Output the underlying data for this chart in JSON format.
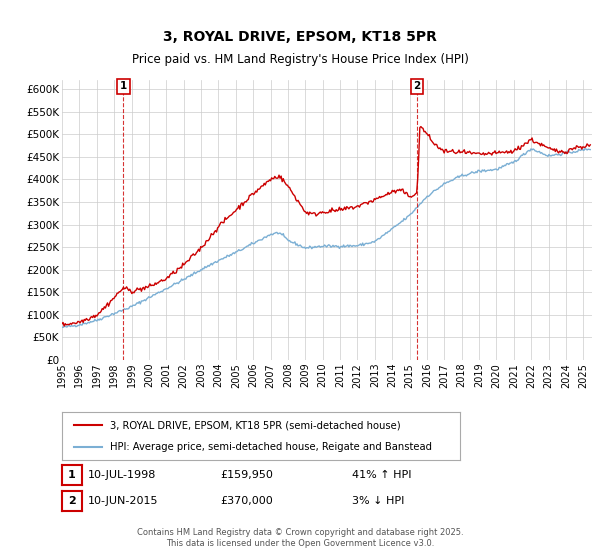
{
  "title": "3, ROYAL DRIVE, EPSOM, KT18 5PR",
  "subtitle": "Price paid vs. HM Land Registry's House Price Index (HPI)",
  "ylim": [
    0,
    620000
  ],
  "xlim_start": 1995.0,
  "xlim_end": 2025.5,
  "yticks": [
    0,
    50000,
    100000,
    150000,
    200000,
    250000,
    300000,
    350000,
    400000,
    450000,
    500000,
    550000,
    600000
  ],
  "ytick_labels": [
    "£0",
    "£50K",
    "£100K",
    "£150K",
    "£200K",
    "£250K",
    "£300K",
    "£350K",
    "£400K",
    "£450K",
    "£500K",
    "£550K",
    "£600K"
  ],
  "xticks": [
    1995,
    1996,
    1997,
    1998,
    1999,
    2000,
    2001,
    2002,
    2003,
    2004,
    2005,
    2006,
    2007,
    2008,
    2009,
    2010,
    2011,
    2012,
    2013,
    2014,
    2015,
    2016,
    2017,
    2018,
    2019,
    2020,
    2021,
    2022,
    2023,
    2024,
    2025
  ],
  "sale1_date": 1998.53,
  "sale1_price": 159950,
  "sale1_label": "1",
  "sale2_date": 2015.44,
  "sale2_price": 370000,
  "sale2_label": "2",
  "legend_line1": "3, ROYAL DRIVE, EPSOM, KT18 5PR (semi-detached house)",
  "legend_line2": "HPI: Average price, semi-detached house, Reigate and Banstead",
  "note1_label": "1",
  "note1_date": "10-JUL-1998",
  "note1_price": "£159,950",
  "note1_pct": "41% ↑ HPI",
  "note2_label": "2",
  "note2_date": "10-JUN-2015",
  "note2_price": "£370,000",
  "note2_pct": "3% ↓ HPI",
  "footer": "Contains HM Land Registry data © Crown copyright and database right 2025.\nThis data is licensed under the Open Government Licence v3.0.",
  "line_color_red": "#cc0000",
  "line_color_blue": "#7bafd4",
  "bg_color": "#ffffff",
  "grid_color": "#cccccc"
}
